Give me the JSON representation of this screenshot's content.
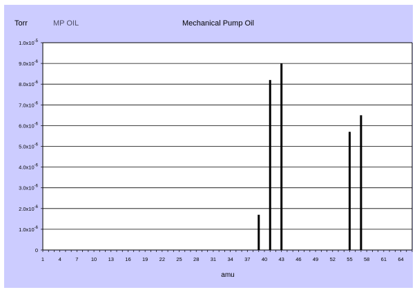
{
  "header": {
    "unit": "Torr",
    "sample": "MP OIL",
    "title": "Mechanical Pump Oil"
  },
  "chart_data": {
    "type": "bar",
    "title": "Mechanical Pump Oil",
    "xlabel": "amu",
    "ylabel": "Torr",
    "series_label": "MP OIL",
    "xlim": [
      1,
      66
    ],
    "ylim": [
      0,
      1e-05
    ],
    "x_ticks": [
      1,
      4,
      7,
      10,
      13,
      16,
      19,
      22,
      25,
      28,
      31,
      34,
      37,
      40,
      43,
      46,
      49,
      52,
      55,
      58,
      61,
      64
    ],
    "y_ticks": [
      {
        "value": 0,
        "mantissa": "0",
        "exp": ""
      },
      {
        "value": 1e-06,
        "mantissa": "1.0x10",
        "exp": "-6"
      },
      {
        "value": 2e-06,
        "mantissa": "2.0x10",
        "exp": "-6"
      },
      {
        "value": 3e-06,
        "mantissa": "3.0x10",
        "exp": "-6"
      },
      {
        "value": 4e-06,
        "mantissa": "4.0x10",
        "exp": "-6"
      },
      {
        "value": 5e-06,
        "mantissa": "5.0x10",
        "exp": "-6"
      },
      {
        "value": 6e-06,
        "mantissa": "6.0x10",
        "exp": "-6"
      },
      {
        "value": 7e-06,
        "mantissa": "7.0x10",
        "exp": "-6"
      },
      {
        "value": 8e-06,
        "mantissa": "8.0x10",
        "exp": "-6"
      },
      {
        "value": 9e-06,
        "mantissa": "9.0x10",
        "exp": "-6"
      },
      {
        "value": 1e-05,
        "mantissa": "1.0x10",
        "exp": "-5"
      }
    ],
    "bars": [
      {
        "amu": 39,
        "value": 1.7e-06
      },
      {
        "amu": 41,
        "value": 8.2e-06
      },
      {
        "amu": 43,
        "value": 9e-06
      },
      {
        "amu": 55,
        "value": 5.7e-06
      },
      {
        "amu": 57,
        "value": 6.5e-06
      }
    ],
    "grid": true,
    "colors": {
      "panel": "#ccccff",
      "plot": "#ffffff",
      "bar": "#000000"
    }
  }
}
